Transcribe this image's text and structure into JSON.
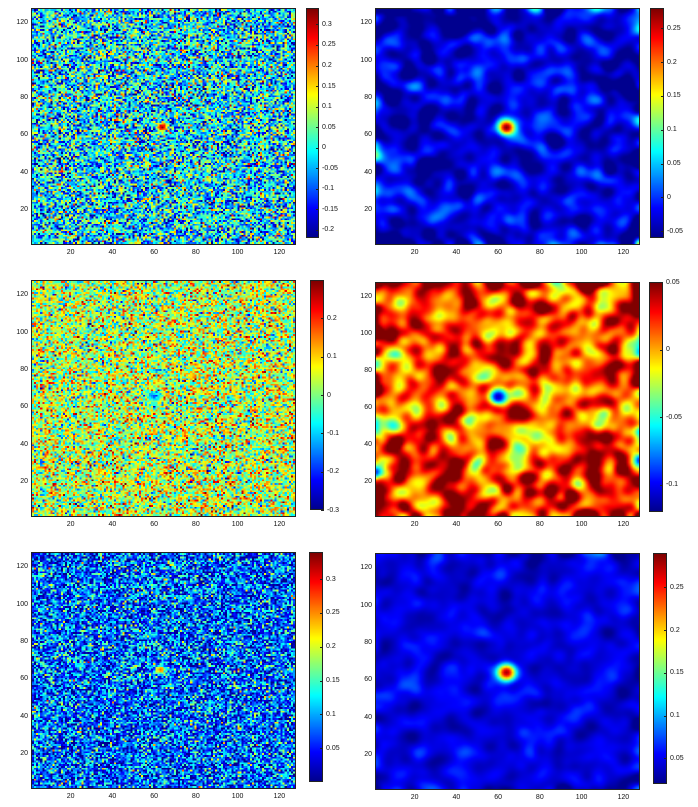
{
  "colormap": "jet",
  "colormap_stops": [
    "#00008f",
    "#0000ff",
    "#00ffff",
    "#ffff00",
    "#ff0000",
    "#800000"
  ],
  "chart_data": [
    {
      "type": "heatmap",
      "texture": "noise",
      "grid": [
        128,
        128
      ],
      "xlim": [
        1,
        128
      ],
      "ylim": [
        1,
        128
      ],
      "xticks": [
        "20",
        "40",
        "60",
        "80",
        "100",
        "120"
      ],
      "yticks": [
        "20",
        "40",
        "60",
        "80",
        "100",
        "120"
      ],
      "clim": [
        -0.22,
        0.34
      ],
      "cticks": [
        {
          "v": 0.3,
          "t": "0.3"
        },
        {
          "v": 0.25,
          "t": "0.25"
        },
        {
          "v": 0.2,
          "t": "0.2"
        },
        {
          "v": 0.15,
          "t": "0.15"
        },
        {
          "v": 0.1,
          "t": "0.1"
        },
        {
          "v": 0.05,
          "t": "0.05"
        },
        {
          "v": 0,
          "t": "0"
        },
        {
          "v": -0.05,
          "t": "-0.05"
        },
        {
          "v": -0.1,
          "t": "-0.1"
        },
        {
          "v": -0.15,
          "t": "-0.15"
        },
        {
          "v": -0.2,
          "t": "-0.2"
        }
      ],
      "base": -0.02,
      "noise": 0.22,
      "peak": {
        "x": 64,
        "y": 64,
        "value": 0.33,
        "width": 1.8
      }
    },
    {
      "type": "heatmap",
      "texture": "smooth",
      "grid": [
        128,
        128
      ],
      "xlim": [
        1,
        128
      ],
      "ylim": [
        1,
        128
      ],
      "xticks": [
        "20",
        "40",
        "60",
        "80",
        "100",
        "120"
      ],
      "yticks": [
        "20",
        "40",
        "60",
        "80",
        "100",
        "120"
      ],
      "clim": [
        -0.06,
        0.28
      ],
      "cticks": [
        {
          "v": 0.25,
          "t": "0.25"
        },
        {
          "v": 0.2,
          "t": "0.2"
        },
        {
          "v": 0.15,
          "t": "0.15"
        },
        {
          "v": 0.1,
          "t": "0.1"
        },
        {
          "v": 0.05,
          "t": "0.05"
        },
        {
          "v": 0,
          "t": "0"
        },
        {
          "v": -0.05,
          "t": "-0.05"
        }
      ],
      "base": -0.035,
      "noise": 0.05,
      "peak": {
        "x": 64,
        "y": 64,
        "value": 0.28,
        "width": 3.2
      }
    },
    {
      "type": "heatmap",
      "texture": "noise",
      "grid": [
        128,
        128
      ],
      "xlim": [
        1,
        128
      ],
      "ylim": [
        1,
        128
      ],
      "xticks": [
        "20",
        "40",
        "60",
        "80",
        "100",
        "120"
      ],
      "yticks": [
        "20",
        "40",
        "60",
        "80",
        "100",
        "120"
      ],
      "clim": [
        -0.3,
        0.3
      ],
      "cticks": [
        {
          "v": 0.2,
          "t": "0.2"
        },
        {
          "v": 0.1,
          "t": "0.1"
        },
        {
          "v": 0,
          "t": "0"
        },
        {
          "v": -0.1,
          "t": "-0.1"
        },
        {
          "v": -0.2,
          "t": "-0.2"
        },
        {
          "v": -0.3,
          "t": "-0.3"
        }
      ],
      "base": 0.03,
      "noise": 0.2,
      "peak": {
        "x": 60,
        "y": 66,
        "value": -0.18,
        "width": 1.6
      }
    },
    {
      "type": "heatmap",
      "texture": "smooth",
      "grid": [
        128,
        128
      ],
      "xlim": [
        1,
        128
      ],
      "ylim": [
        1,
        128
      ],
      "xticks": [
        "20",
        "40",
        "60",
        "80",
        "100",
        "120"
      ],
      "yticks": [
        "20",
        "40",
        "60",
        "80",
        "100",
        "120"
      ],
      "clim": [
        -0.12,
        0.05
      ],
      "cticks": [
        {
          "v": 0.05,
          "t": "0.05"
        },
        {
          "v": 0,
          "t": "0"
        },
        {
          "v": -0.05,
          "t": "-0.05"
        },
        {
          "v": -0.1,
          "t": "-0.1"
        }
      ],
      "base": 0.018,
      "noise": 0.048,
      "peak": {
        "x": 60,
        "y": 66,
        "value": -0.11,
        "width": 3.2
      }
    },
    {
      "type": "heatmap",
      "texture": "noise",
      "grid": [
        128,
        128
      ],
      "xlim": [
        1,
        128
      ],
      "ylim": [
        1,
        128
      ],
      "xticks": [
        "20",
        "40",
        "60",
        "80",
        "100",
        "120"
      ],
      "yticks": [
        "20",
        "40",
        "60",
        "80",
        "100",
        "120"
      ],
      "clim": [
        0,
        0.34
      ],
      "cticks": [
        {
          "v": 0.3,
          "t": "0.3"
        },
        {
          "v": 0.25,
          "t": "0.25"
        },
        {
          "v": 0.2,
          "t": "0.2"
        },
        {
          "v": 0.15,
          "t": "0.15"
        },
        {
          "v": 0.1,
          "t": "0.1"
        },
        {
          "v": 0.05,
          "t": "0.05"
        }
      ],
      "base": 0.075,
      "noise": 0.12,
      "floor": 0.0,
      "peak": {
        "x": 63,
        "y": 65,
        "value": 0.26,
        "width": 1.8
      }
    },
    {
      "type": "heatmap",
      "texture": "smooth",
      "grid": [
        128,
        128
      ],
      "xlim": [
        1,
        128
      ],
      "ylim": [
        1,
        128
      ],
      "xticks": [
        "20",
        "40",
        "60",
        "80",
        "100",
        "120"
      ],
      "yticks": [
        "20",
        "40",
        "60",
        "80",
        "100",
        "120"
      ],
      "clim": [
        0.02,
        0.29
      ],
      "cticks": [
        {
          "v": 0.25,
          "t": "0.25"
        },
        {
          "v": 0.2,
          "t": "0.2"
        },
        {
          "v": 0.15,
          "t": "0.15"
        },
        {
          "v": 0.1,
          "t": "0.1"
        },
        {
          "v": 0.05,
          "t": "0.05"
        }
      ],
      "base": 0.045,
      "noise": 0.02,
      "peak": {
        "x": 64,
        "y": 64,
        "value": 0.28,
        "width": 3.2
      }
    }
  ]
}
